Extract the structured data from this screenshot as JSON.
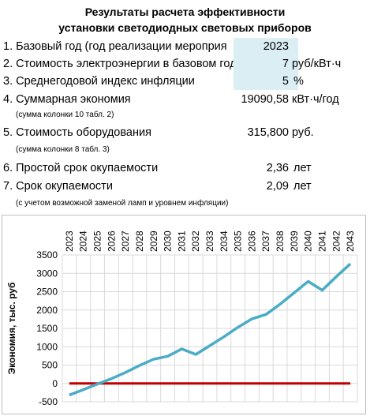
{
  "title": {
    "line1": "Результаты расчета эффективности",
    "line2": "установки светодиодных световых приборов"
  },
  "rows": [
    {
      "label": "1. Базовый год (год реализации мероприя",
      "value": "2023",
      "unit": "",
      "highlight": true
    },
    {
      "label": "2. Стоимость электроэнергии в базовом год",
      "value": "7",
      "unit": "руб/кВт·ч",
      "highlight": true
    },
    {
      "label": "3. Среднегодовой индекс инфляции",
      "value": "5",
      "unit": "%",
      "highlight": true
    },
    {
      "label": "4.  Суммарная экономия",
      "value": "19090,58",
      "unit": "кВт·ч/год",
      "highlight": false
    },
    {
      "label": "5. Стоимость оборудования",
      "value": "315,800",
      "unit": "руб.",
      "highlight": false
    },
    {
      "label": "6. Простой срок окупаемости",
      "value": "2,36",
      "unit": "лет",
      "highlight": false
    },
    {
      "label": "7. Срок окупаемости",
      "value": "2,09",
      "unit": "лет",
      "highlight": false
    }
  ],
  "notes": {
    "note4": "(сумма колонки 10 табл. 2)",
    "note5": "(сумма колонки 8 табл. 3)",
    "note7": "(с учетом возможной заменой ламп и уровнем инфляции)"
  },
  "colors": {
    "highlight_cell": "#daeef3",
    "series_line": "#4bacc6",
    "zero_line": "#c00000",
    "grid": "#d9d9d9"
  },
  "chart_data": {
    "type": "line",
    "title": "",
    "xlabel": "",
    "ylabel": "Экономия, тыс. руб",
    "x_axis_position": "top",
    "x_label_orientation": "vertical",
    "x_tick_labels": [
      "2023",
      "2024",
      "2025",
      "2026",
      "2027",
      "2028",
      "2029",
      "2030",
      "2031",
      "2032",
      "2033",
      "2034",
      "2035",
      "2036",
      "2037",
      "2038",
      "2039",
      "2040",
      "2041",
      "2042",
      "2043"
    ],
    "x": [
      2023,
      2024,
      2025,
      2026,
      2027,
      2028,
      2029,
      2030,
      2031,
      2032,
      2033,
      2034,
      2035,
      2036,
      2037,
      2038,
      2039,
      2040,
      2041,
      2042,
      2043
    ],
    "series": [
      {
        "name": "",
        "values": [
          -316,
          -170,
          -15,
          130,
          300,
          490,
          660,
          740,
          940,
          790,
          1030,
          1270,
          1530,
          1760,
          1880,
          2160,
          2470,
          2780,
          2540,
          2910,
          3260
        ]
      },
      {
        "name": "",
        "values": [
          0,
          0,
          0,
          0,
          0,
          0,
          0,
          0,
          0,
          0,
          0,
          0,
          0,
          0,
          0,
          0,
          0,
          0,
          0,
          0,
          0
        ]
      }
    ],
    "ylim": [
      -500,
      3500
    ],
    "y_ticks": [
      -500,
      0,
      500,
      1000,
      1500,
      2000,
      2500,
      3000,
      3500
    ],
    "grid": true,
    "legend": "none"
  }
}
